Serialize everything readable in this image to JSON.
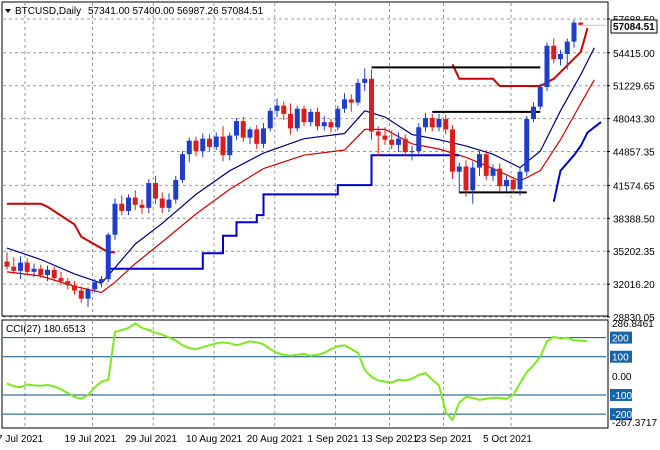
{
  "header": {
    "symbol_label": "BTCUSD,Daily",
    "ohlc_text": "57341.00 57400.00 56987.26 57084.51"
  },
  "last_price_badge": "57084.51",
  "indicator": {
    "label": "CCI(27) 180.6513",
    "level_badges": [
      "200",
      "100",
      "-100",
      "-200"
    ]
  },
  "colors": {
    "bull_candle": "#1e3ec8",
    "bear_candle": "#d81e1e",
    "ma_fast": "#000080",
    "ma_slow": "#cc0000",
    "channel_low": "#0000cc",
    "channel_high": "#cc0000",
    "cci_line": "#7ee81e",
    "level_line": "#0a4f8a",
    "badge_bg": "#1566a8"
  },
  "chart_data": [
    {
      "type": "candlestick",
      "title": "BTCUSD,Daily",
      "x_ticks": [
        "7 Jul 2021",
        "19 Jul 2021",
        "29 Jul 2021",
        "10 Aug 2021",
        "20 Aug 2021",
        "1 Sep 2021",
        "13 Sep 2021",
        "23 Sep 2021",
        "5 Oct 2021"
      ],
      "y_ticks": [
        "57688.50",
        "54415.00",
        "51229.65",
        "48043.30",
        "44857.35",
        "41574.65",
        "38388.50",
        "35202.35",
        "32016.20",
        "28830.05"
      ],
      "ylim": [
        28830.05,
        57688.5
      ],
      "grid": true,
      "candles": [
        {
          "o": 34200,
          "h": 35100,
          "l": 33400,
          "c": 33700
        },
        {
          "o": 33700,
          "h": 34600,
          "l": 33000,
          "c": 33300
        },
        {
          "o": 33300,
          "h": 34700,
          "l": 32500,
          "c": 34100
        },
        {
          "o": 34100,
          "h": 34500,
          "l": 33000,
          "c": 33200
        },
        {
          "o": 33200,
          "h": 34000,
          "l": 32700,
          "c": 33500
        },
        {
          "o": 33500,
          "h": 33900,
          "l": 32600,
          "c": 32900
        },
        {
          "o": 32900,
          "h": 33800,
          "l": 32300,
          "c": 33400
        },
        {
          "o": 33400,
          "h": 33700,
          "l": 32300,
          "c": 32600
        },
        {
          "o": 32600,
          "h": 33200,
          "l": 31900,
          "c": 32300
        },
        {
          "o": 32300,
          "h": 32600,
          "l": 31500,
          "c": 31900
        },
        {
          "o": 31900,
          "h": 32300,
          "l": 31000,
          "c": 31400
        },
        {
          "o": 31400,
          "h": 31800,
          "l": 30200,
          "c": 30600
        },
        {
          "o": 30600,
          "h": 31700,
          "l": 29800,
          "c": 31500
        },
        {
          "o": 31500,
          "h": 32500,
          "l": 31200,
          "c": 32200
        },
        {
          "o": 32200,
          "h": 32800,
          "l": 31700,
          "c": 32500
        },
        {
          "o": 32500,
          "h": 37000,
          "l": 32200,
          "c": 36800
        },
        {
          "o": 36800,
          "h": 40300,
          "l": 36300,
          "c": 39800
        },
        {
          "o": 39800,
          "h": 40600,
          "l": 38700,
          "c": 39100
        },
        {
          "o": 39100,
          "h": 40700,
          "l": 38700,
          "c": 40400
        },
        {
          "o": 40400,
          "h": 41100,
          "l": 39200,
          "c": 39700
        },
        {
          "o": 39700,
          "h": 40200,
          "l": 38800,
          "c": 39400
        },
        {
          "o": 39400,
          "h": 42200,
          "l": 38900,
          "c": 41800
        },
        {
          "o": 41800,
          "h": 42500,
          "l": 39800,
          "c": 40300
        },
        {
          "o": 40300,
          "h": 40900,
          "l": 38900,
          "c": 39400
        },
        {
          "o": 39400,
          "h": 40800,
          "l": 39000,
          "c": 40200
        },
        {
          "o": 40200,
          "h": 42500,
          "l": 39800,
          "c": 42100
        },
        {
          "o": 42100,
          "h": 44900,
          "l": 41800,
          "c": 44600
        },
        {
          "o": 44600,
          "h": 46200,
          "l": 43800,
          "c": 45900
        },
        {
          "o": 45900,
          "h": 46300,
          "l": 44400,
          "c": 44900
        },
        {
          "o": 44900,
          "h": 46600,
          "l": 44300,
          "c": 46100
        },
        {
          "o": 46100,
          "h": 46500,
          "l": 44900,
          "c": 45300
        },
        {
          "o": 45300,
          "h": 46700,
          "l": 45000,
          "c": 46300
        },
        {
          "o": 46300,
          "h": 47300,
          "l": 43900,
          "c": 44500
        },
        {
          "o": 44500,
          "h": 46700,
          "l": 44000,
          "c": 46400
        },
        {
          "o": 46400,
          "h": 48100,
          "l": 46000,
          "c": 47800
        },
        {
          "o": 47800,
          "h": 48200,
          "l": 45800,
          "c": 46200
        },
        {
          "o": 46200,
          "h": 47200,
          "l": 45600,
          "c": 47000
        },
        {
          "o": 47000,
          "h": 47400,
          "l": 45100,
          "c": 45600
        },
        {
          "o": 45600,
          "h": 47600,
          "l": 45200,
          "c": 47100
        },
        {
          "o": 47100,
          "h": 49100,
          "l": 46800,
          "c": 48800
        },
        {
          "o": 48800,
          "h": 50000,
          "l": 48200,
          "c": 49300
        },
        {
          "o": 49300,
          "h": 49700,
          "l": 47900,
          "c": 48500
        },
        {
          "o": 48500,
          "h": 49500,
          "l": 46500,
          "c": 47100
        },
        {
          "o": 47100,
          "h": 49300,
          "l": 46800,
          "c": 49000
        },
        {
          "o": 49000,
          "h": 49300,
          "l": 47300,
          "c": 47700
        },
        {
          "o": 47700,
          "h": 49000,
          "l": 47300,
          "c": 48700
        },
        {
          "o": 48700,
          "h": 49100,
          "l": 46900,
          "c": 47300
        },
        {
          "o": 47300,
          "h": 48300,
          "l": 46900,
          "c": 47700
        },
        {
          "o": 47700,
          "h": 48000,
          "l": 46700,
          "c": 47200
        },
        {
          "o": 47200,
          "h": 49300,
          "l": 46900,
          "c": 49000
        },
        {
          "o": 49000,
          "h": 50500,
          "l": 48600,
          "c": 49900
        },
        {
          "o": 49900,
          "h": 50400,
          "l": 48700,
          "c": 49600
        },
        {
          "o": 49600,
          "h": 51900,
          "l": 49300,
          "c": 51500
        },
        {
          "o": 51500,
          "h": 52900,
          "l": 50700,
          "c": 51900
        },
        {
          "o": 51900,
          "h": 52800,
          "l": 46000,
          "c": 46800
        },
        {
          "o": 46800,
          "h": 47300,
          "l": 44400,
          "c": 46400
        },
        {
          "o": 46400,
          "h": 47200,
          "l": 45500,
          "c": 46000
        },
        {
          "o": 46000,
          "h": 46900,
          "l": 45100,
          "c": 45500
        },
        {
          "o": 45500,
          "h": 46700,
          "l": 44800,
          "c": 46100
        },
        {
          "o": 46100,
          "h": 46500,
          "l": 44400,
          "c": 44800
        },
        {
          "o": 44800,
          "h": 45400,
          "l": 44000,
          "c": 44900
        },
        {
          "o": 44900,
          "h": 47600,
          "l": 44600,
          "c": 47200
        },
        {
          "o": 47200,
          "h": 48600,
          "l": 46800,
          "c": 48100
        },
        {
          "o": 48100,
          "h": 48500,
          "l": 46800,
          "c": 47200
        },
        {
          "o": 47200,
          "h": 48500,
          "l": 46800,
          "c": 48000
        },
        {
          "o": 48000,
          "h": 48400,
          "l": 46500,
          "c": 47000
        },
        {
          "o": 47000,
          "h": 47400,
          "l": 42200,
          "c": 42900
        },
        {
          "o": 42900,
          "h": 43800,
          "l": 40800,
          "c": 43400
        },
        {
          "o": 43400,
          "h": 44000,
          "l": 40500,
          "c": 41100
        },
        {
          "o": 41100,
          "h": 43900,
          "l": 39800,
          "c": 43300
        },
        {
          "o": 43300,
          "h": 44900,
          "l": 42500,
          "c": 44600
        },
        {
          "o": 44600,
          "h": 45000,
          "l": 42100,
          "c": 42500
        },
        {
          "o": 42500,
          "h": 43600,
          "l": 42000,
          "c": 43200
        },
        {
          "o": 43200,
          "h": 43700,
          "l": 41000,
          "c": 41500
        },
        {
          "o": 41500,
          "h": 42500,
          "l": 41000,
          "c": 42100
        },
        {
          "o": 42100,
          "h": 42400,
          "l": 40800,
          "c": 41200
        },
        {
          "o": 41200,
          "h": 43300,
          "l": 40600,
          "c": 42900
        },
        {
          "o": 42900,
          "h": 48300,
          "l": 42500,
          "c": 48000
        },
        {
          "o": 48000,
          "h": 49600,
          "l": 47700,
          "c": 49200
        },
        {
          "o": 49200,
          "h": 51400,
          "l": 48900,
          "c": 51100
        },
        {
          "o": 51100,
          "h": 55400,
          "l": 50700,
          "c": 55100
        },
        {
          "o": 55100,
          "h": 55800,
          "l": 53400,
          "c": 53800
        },
        {
          "o": 53800,
          "h": 54700,
          "l": 53200,
          "c": 54300
        },
        {
          "o": 54300,
          "h": 55800,
          "l": 52800,
          "c": 55500
        },
        {
          "o": 55500,
          "h": 57600,
          "l": 54900,
          "c": 57341
        },
        {
          "o": 57341,
          "h": 57400,
          "l": 56987,
          "c": 57084
        }
      ],
      "ma_fast": [
        [
          0,
          35500
        ],
        [
          5,
          34400
        ],
        [
          10,
          33000
        ],
        [
          14,
          32100
        ],
        [
          16,
          33600
        ],
        [
          19,
          35900
        ],
        [
          23,
          37900
        ],
        [
          28,
          40700
        ],
        [
          33,
          43000
        ],
        [
          38,
          44700
        ],
        [
          44,
          46100
        ],
        [
          50,
          46600
        ],
        [
          53,
          48800
        ],
        [
          56,
          48200
        ],
        [
          60,
          46500
        ],
        [
          64,
          46000
        ],
        [
          68,
          45400
        ],
        [
          72,
          44600
        ],
        [
          76,
          43300
        ],
        [
          79,
          44900
        ],
        [
          82,
          48800
        ],
        [
          85,
          52300
        ],
        [
          87,
          54900
        ]
      ],
      "ma_slow": [
        [
          0,
          33200
        ],
        [
          5,
          32800
        ],
        [
          10,
          31800
        ],
        [
          14,
          31200
        ],
        [
          16,
          32200
        ],
        [
          19,
          34000
        ],
        [
          23,
          36100
        ],
        [
          28,
          38800
        ],
        [
          33,
          41200
        ],
        [
          38,
          43200
        ],
        [
          44,
          44500
        ],
        [
          50,
          45000
        ],
        [
          53,
          47000
        ],
        [
          56,
          47000
        ],
        [
          60,
          45600
        ],
        [
          64,
          45100
        ],
        [
          68,
          44300
        ],
        [
          72,
          43200
        ],
        [
          76,
          42000
        ],
        [
          79,
          43000
        ],
        [
          82,
          46000
        ],
        [
          85,
          49500
        ],
        [
          87,
          51800
        ]
      ],
      "channel_low": [
        [
          [
            15,
            33500
          ],
          [
            29,
            33500
          ],
          [
            29,
            35000
          ],
          [
            32,
            35000
          ],
          [
            32,
            36700
          ],
          [
            34,
            36700
          ],
          [
            34,
            38000
          ],
          [
            37,
            38000
          ],
          [
            37,
            38700
          ],
          [
            38,
            38700
          ],
          [
            38,
            40700
          ],
          [
            49,
            40700
          ],
          [
            49,
            41600
          ],
          [
            54,
            41600
          ],
          [
            54,
            44500
          ],
          [
            67,
            44500
          ]
        ],
        [
          [
            81,
            40000
          ],
          [
            82,
            43000
          ],
          [
            84,
            44500
          ],
          [
            85,
            45400
          ],
          [
            86,
            46700
          ],
          [
            88,
            47700
          ]
        ]
      ],
      "channel_high": [
        [
          [
            0,
            39800
          ],
          [
            5,
            39800
          ],
          [
            6,
            39500
          ],
          [
            10,
            37800
          ],
          [
            11,
            36600
          ],
          [
            15,
            35100
          ],
          [
            16,
            35100
          ]
        ],
        [
          [
            66,
            53300
          ],
          [
            67,
            51900
          ],
          [
            72,
            51900
          ],
          [
            73,
            51200
          ],
          [
            79,
            51200
          ],
          [
            81,
            51900
          ],
          [
            85,
            54500
          ],
          [
            86,
            56800
          ]
        ]
      ],
      "levels": [
        {
          "x": [
            54,
            79
          ],
          "y": 53000
        },
        {
          "x": [
            63,
            79
          ],
          "y": 48700
        },
        {
          "x": [
            67,
            77
          ],
          "y": 40900
        }
      ]
    },
    {
      "type": "line",
      "title": "CCI(27) 180.6513",
      "y_ticks": [
        "286.8461",
        "200",
        "100",
        "0.00",
        "-100",
        "-200",
        "-267.3717"
      ],
      "ylim": [
        -267.3717,
        286.8461
      ],
      "levels": [
        200,
        100,
        -100,
        -200
      ],
      "series": [
        {
          "values": [
            -40,
            -55,
            -60,
            -45,
            -50,
            -52,
            -48,
            -55,
            -70,
            -90,
            -110,
            -120,
            -100,
            -60,
            -30,
            -20,
            230,
            240,
            250,
            275,
            250,
            240,
            225,
            215,
            200,
            185,
            160,
            145,
            140,
            150,
            160,
            170,
            175,
            170,
            160,
            170,
            180,
            175,
            165,
            140,
            120,
            110,
            105,
            110,
            115,
            105,
            110,
            120,
            140,
            155,
            160,
            140,
            120,
            30,
            -5,
            -25,
            -30,
            -35,
            -20,
            -25,
            -15,
            5,
            15,
            -20,
            -50,
            -190,
            -230,
            -140,
            -110,
            -115,
            -125,
            -120,
            -115,
            -115,
            -120,
            -100,
            -40,
            20,
            55,
            100,
            180,
            205,
            195,
            200,
            185,
            185,
            180
          ]
        }
      ]
    }
  ]
}
